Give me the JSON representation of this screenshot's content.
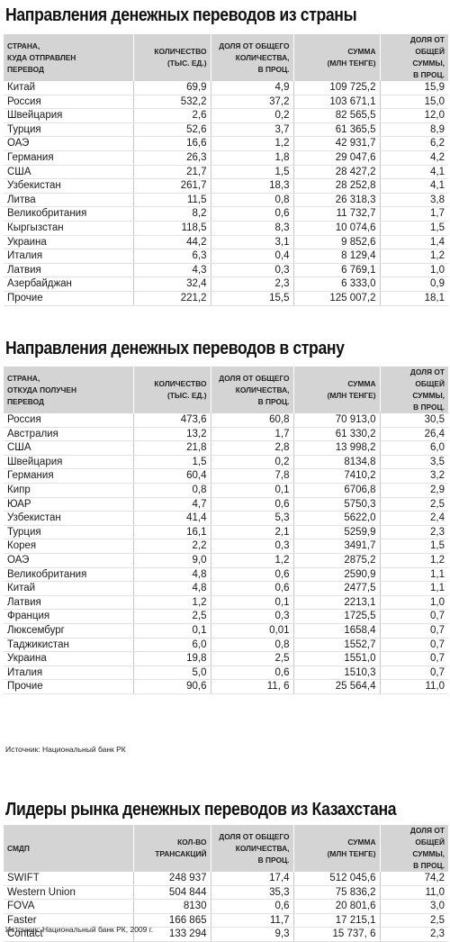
{
  "section1": {
    "title": "Направления денежных переводов из страны",
    "headers": [
      "СТРАНА,\nКУДА ОТПРАВЛЕН\nПЕРЕВОД",
      "КОЛИЧЕСТВО\n(ТЫС. ЕД.)",
      "ДОЛЯ ОТ ОБЩЕГО\nКОЛИЧЕСТВА,\nВ ПРОЦ.",
      "СУММА\n(МЛН ТЕНГЕ)",
      "ДОЛЯ ОТ\nОБЩЕЙ СУММЫ,\nВ ПРОЦ."
    ],
    "rows": [
      [
        "Китай",
        "69,9",
        "4,9",
        "109 725,2",
        "15,9"
      ],
      [
        "Россия",
        "532,2",
        "37,2",
        "103 671,1",
        "15,0"
      ],
      [
        "Швейцария",
        "2,6",
        "0,2",
        "82 565,5",
        "12,0"
      ],
      [
        "Турция",
        "52,6",
        "3,7",
        "61 365,5",
        "8,9"
      ],
      [
        "ОАЭ",
        "16,6",
        "1,2",
        "42 931,7",
        "6,2"
      ],
      [
        "Германия",
        "26,3",
        "1,8",
        "29 047,6",
        "4,2"
      ],
      [
        "США",
        "21,7",
        "1,5",
        "28 427,2",
        "4,1"
      ],
      [
        "Узбекистан",
        "261,7",
        "18,3",
        "28 252,8",
        "4,1"
      ],
      [
        "Литва",
        "11,5",
        "0,8",
        "26 318,3",
        "3,8"
      ],
      [
        "Великобритания",
        "8,2",
        "0,6",
        "11 732,7",
        "1,7"
      ],
      [
        "Кыргызстан",
        "118,5",
        "8,3",
        "10 074,6",
        "1,5"
      ],
      [
        "Украина",
        "44,2",
        "3,1",
        "9 852,6",
        "1,4"
      ],
      [
        "Италия",
        "6,3",
        "0,4",
        "8 129,4",
        "1,2"
      ],
      [
        "Латвия",
        "4,3",
        "0,3",
        "6 769,1",
        "1,0"
      ],
      [
        "Азербайджан",
        "32,4",
        "2,3",
        "6 333,0",
        "0,9"
      ],
      [
        "Прочие",
        "221,2",
        "15,5",
        "125 007,2",
        "18,1"
      ]
    ]
  },
  "section2": {
    "title": "Направления денежных переводов в страну",
    "headers": [
      "СТРАНА,\nОТКУДА ПОЛУЧЕН\nПЕРЕВОД",
      "КОЛИЧЕСТВО\n(ТЫС. ЕД.)",
      "ДОЛЯ ОТ ОБЩЕГО\nКОЛИЧЕСТВА,\nВ ПРОЦ.",
      "СУММА\n(МЛН ТЕНГЕ)",
      "ДОЛЯ ОТ\nОБЩЕЙ СУММЫ,\nВ ПРОЦ."
    ],
    "rows": [
      [
        "Россия",
        "473,6",
        "60,8",
        "70 913,0",
        "30,5"
      ],
      [
        "Австралия",
        "13,2",
        "1,7",
        "61 330,2",
        "26,4"
      ],
      [
        "США",
        "21,8",
        "2,8",
        "13 998,2",
        "6,0"
      ],
      [
        "Швейцария",
        "1,5",
        "0,2",
        "8134,8",
        "3,5"
      ],
      [
        "Германия",
        "60,4",
        "7,8",
        "7410,2",
        "3,2"
      ],
      [
        "Кипр",
        "0,8",
        "0,1",
        "6706,8",
        "2,9"
      ],
      [
        "ЮАР",
        "4,7",
        "0,6",
        "5750,3",
        "2,5"
      ],
      [
        "Узбекистан",
        "41,4",
        "5,3",
        "5622,0",
        "2,4"
      ],
      [
        "Турция",
        "16,1",
        "2,1",
        "5259,9",
        "2,3"
      ],
      [
        "Корея",
        "2,2",
        "0,3",
        "3491,7",
        "1,5"
      ],
      [
        "ОАЭ",
        "9,0",
        "1,2",
        "2875,2",
        "1,2"
      ],
      [
        "Великобритания",
        "4,8",
        "0,6",
        "2590,9",
        "1,1"
      ],
      [
        "Китай",
        "4,8",
        "0,6",
        "2477,5",
        "1,1"
      ],
      [
        "Латвия",
        "1,2",
        "0,1",
        "2213,1",
        "1,0"
      ],
      [
        "Франция",
        "2,5",
        "0,3",
        "1725,5",
        "0,7"
      ],
      [
        "Люксембург",
        "0,1",
        "0,01",
        "1658,4",
        "0,7"
      ],
      [
        "Таджикистан",
        "6,0",
        "0,8",
        "1552,7",
        "0,7"
      ],
      [
        "Украина",
        "19,8",
        "2,5",
        "1551,0",
        "0,7"
      ],
      [
        "Италия",
        "5,0",
        "0,6",
        "1510,3",
        "0,7"
      ],
      [
        "Прочие",
        "90,6",
        "11, 6",
        "25 564,4",
        "11,0"
      ]
    ],
    "source": "Источник: Национальный банк РК"
  },
  "section3": {
    "title": "Лидеры рынка денежных переводов из Казахстана",
    "headers": [
      "СМДП",
      "КОЛ-ВО\nТРАНСАКЦИЙ",
      "ДОЛЯ ОТ ОБЩЕГО\nКОЛИЧЕСТВА,\nВ ПРОЦ.",
      "СУММА\n(МЛН ТЕНГЕ)",
      "ДОЛЯ ОТ\nОБЩЕЙ СУММЫ,\nВ ПРОЦ."
    ],
    "rows": [
      [
        "SWIFT",
        "248 937",
        "17,4",
        "512 045,6",
        "74,2"
      ],
      [
        "Western Union",
        "504 844",
        "35,3",
        "75 836,2",
        "11,0"
      ],
      [
        "FOVA",
        "8130",
        "0,6",
        "20 801,6",
        "3,0"
      ],
      [
        "Faster",
        "166 865",
        "11,7",
        "17 215,1",
        "2,5"
      ],
      [
        "Contact",
        "133 294",
        "9,3",
        "15 737, 6",
        "2,3"
      ]
    ],
    "source": "Источник: Национальный банк РК, 2009 г."
  }
}
